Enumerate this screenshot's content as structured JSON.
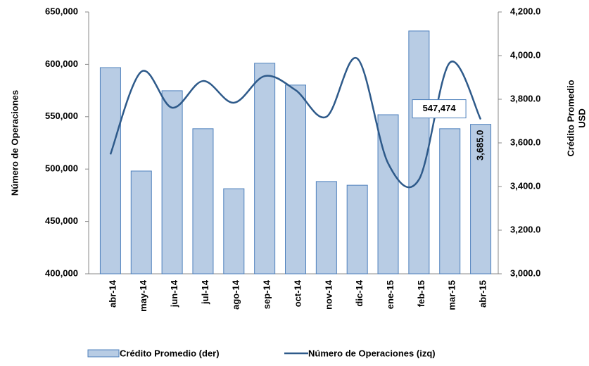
{
  "chart_data": {
    "type": "bar-line",
    "categories": [
      "abr-14",
      "may-14",
      "jun-14",
      "jul-14",
      "ago-14",
      "sep-14",
      "oct-14",
      "nov-14",
      "dic-14",
      "ene-15",
      "feb-15",
      "mar-15",
      "abr-15"
    ],
    "ylabel": "Número de Operaciones",
    "y2label": [
      "Crédito Promedio",
      "USD"
    ],
    "ylim": [
      400000,
      650000
    ],
    "yticks": [
      {
        "value": 400000,
        "label": "400,000"
      },
      {
        "value": 450000,
        "label": "450,000"
      },
      {
        "value": 500000,
        "label": "500,000"
      },
      {
        "value": 550000,
        "label": "550,000"
      },
      {
        "value": 600000,
        "label": "600,000"
      },
      {
        "value": 650000,
        "label": "650,000"
      }
    ],
    "y2lim": [
      3000,
      4200
    ],
    "y2ticks": [
      {
        "value": 3000,
        "label": "3,000.0"
      },
      {
        "value": 3200,
        "label": "3,200.0"
      },
      {
        "value": 3400,
        "label": "3,400.0"
      },
      {
        "value": 3600,
        "label": "3,600.0"
      },
      {
        "value": 3800,
        "label": "3,800.0"
      },
      {
        "value": 4000,
        "label": "4,000.0"
      },
      {
        "value": 4200,
        "label": "4,200.0"
      }
    ],
    "series": [
      {
        "name": "Crédito Promedio (der)",
        "type": "bar",
        "axis": "y2",
        "color": "#b8cce4",
        "edge": "#4f81bd",
        "values": [
          3945,
          3471,
          3839,
          3665,
          3390,
          3965,
          3865,
          3423,
          3406,
          3729,
          4113,
          3665,
          3685
        ],
        "value_labels": [
          null,
          null,
          null,
          null,
          null,
          null,
          null,
          null,
          null,
          null,
          null,
          null,
          "3,685.0"
        ]
      },
      {
        "name": "Número de Operaciones  (izq)",
        "type": "line",
        "axis": "y",
        "color": "#2e5a8a",
        "values": [
          514000,
          593000,
          558600,
          584100,
          563300,
          588800,
          575400,
          549900,
          605600,
          505500,
          490000,
          601600,
          547474
        ],
        "value_labels": [
          null,
          null,
          null,
          null,
          null,
          null,
          null,
          null,
          null,
          null,
          null,
          null,
          "547,474"
        ]
      }
    ]
  }
}
